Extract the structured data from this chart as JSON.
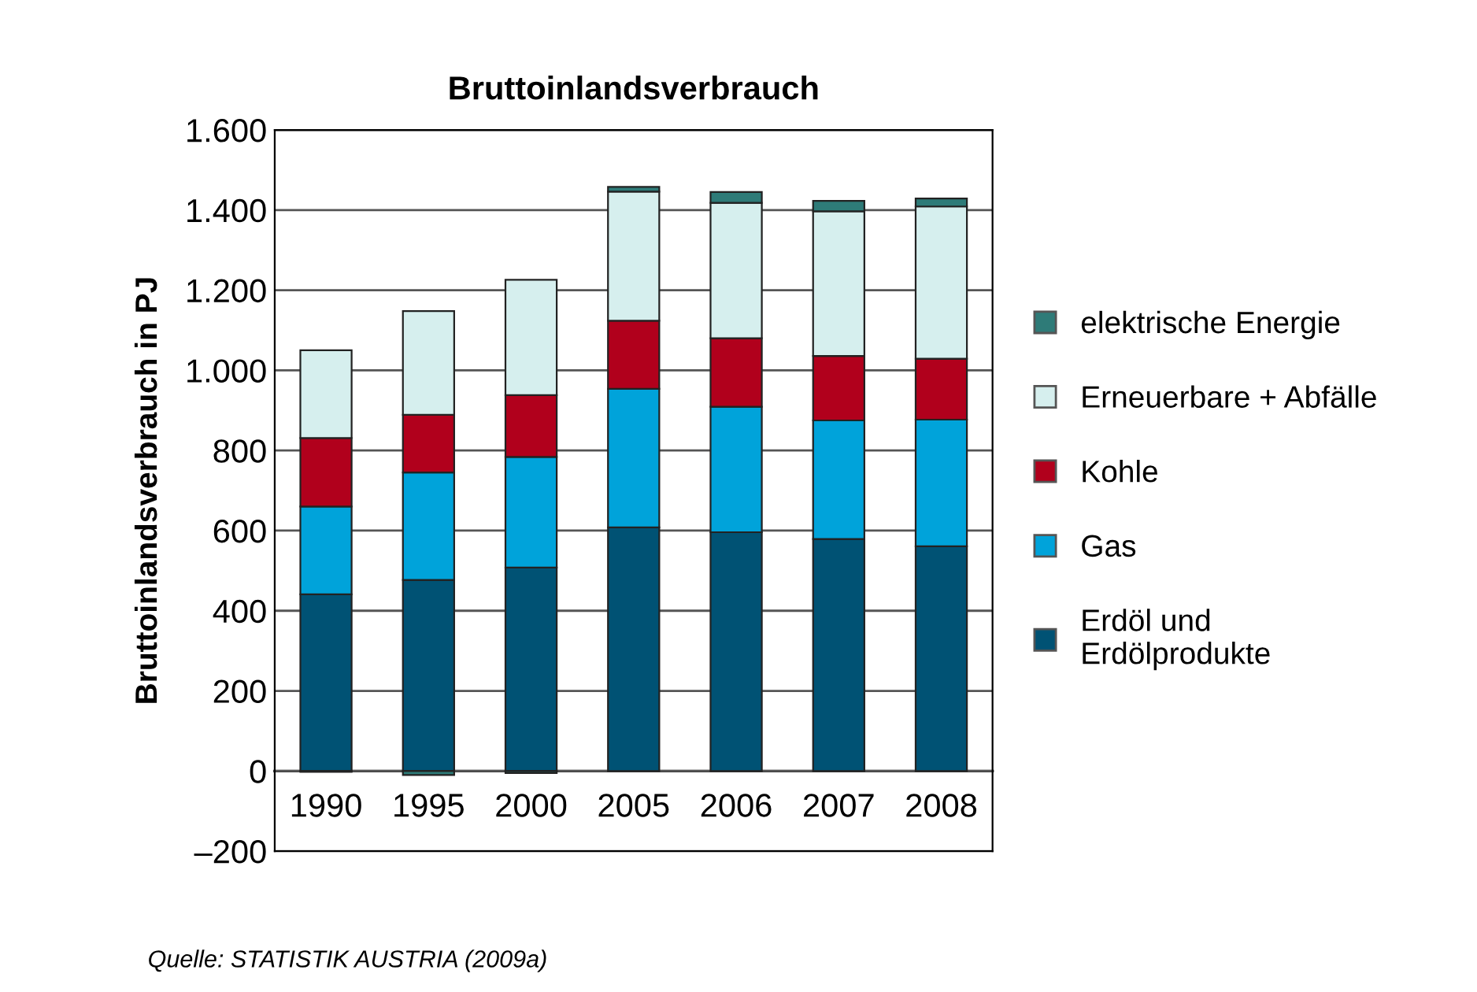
{
  "chart_data": {
    "type": "bar",
    "stacked": true,
    "title": "Bruttoinlandsverbrauch",
    "ylabel": "Bruttoinlandsverbrauch in PJ",
    "categories": [
      "1990",
      "1995",
      "2000",
      "2005",
      "2006",
      "2007",
      "2008"
    ],
    "series": [
      {
        "name": "Erdöl und\nErdölprodukte",
        "color": "#005274",
        "values": [
          441,
          477,
          508,
          608,
          596,
          579,
          561
        ]
      },
      {
        "name": "Gas",
        "color": "#00a3da",
        "values": [
          219,
          268,
          276,
          346,
          313,
          296,
          316
        ]
      },
      {
        "name": "Kohle",
        "color": "#b1001c",
        "values": [
          171,
          144,
          154,
          170,
          171,
          161,
          152
        ]
      },
      {
        "name": "Erneuerbare + Abfälle",
        "color": "#d6efee",
        "values": [
          219,
          259,
          288,
          322,
          338,
          361,
          380
        ]
      },
      {
        "name": "elektrische Energie",
        "color": "#2e7b78",
        "values": [
          -2,
          -10,
          -5,
          12,
          27,
          26,
          20
        ]
      }
    ],
    "ylim": [
      -200,
      1600
    ],
    "yticks": [
      {
        "value": -200,
        "label": "–200"
      },
      0,
      200,
      400,
      600,
      800,
      {
        "value": 1000,
        "label": "1.000"
      },
      {
        "value": 1200,
        "label": "1.200"
      },
      {
        "value": 1400,
        "label": "1.400"
      },
      {
        "value": 1600,
        "label": "1.600"
      }
    ],
    "grid": "y",
    "legend": "right",
    "annotations": [
      "Quelle: STATISTIK AUSTRIA (2009a)"
    ]
  }
}
